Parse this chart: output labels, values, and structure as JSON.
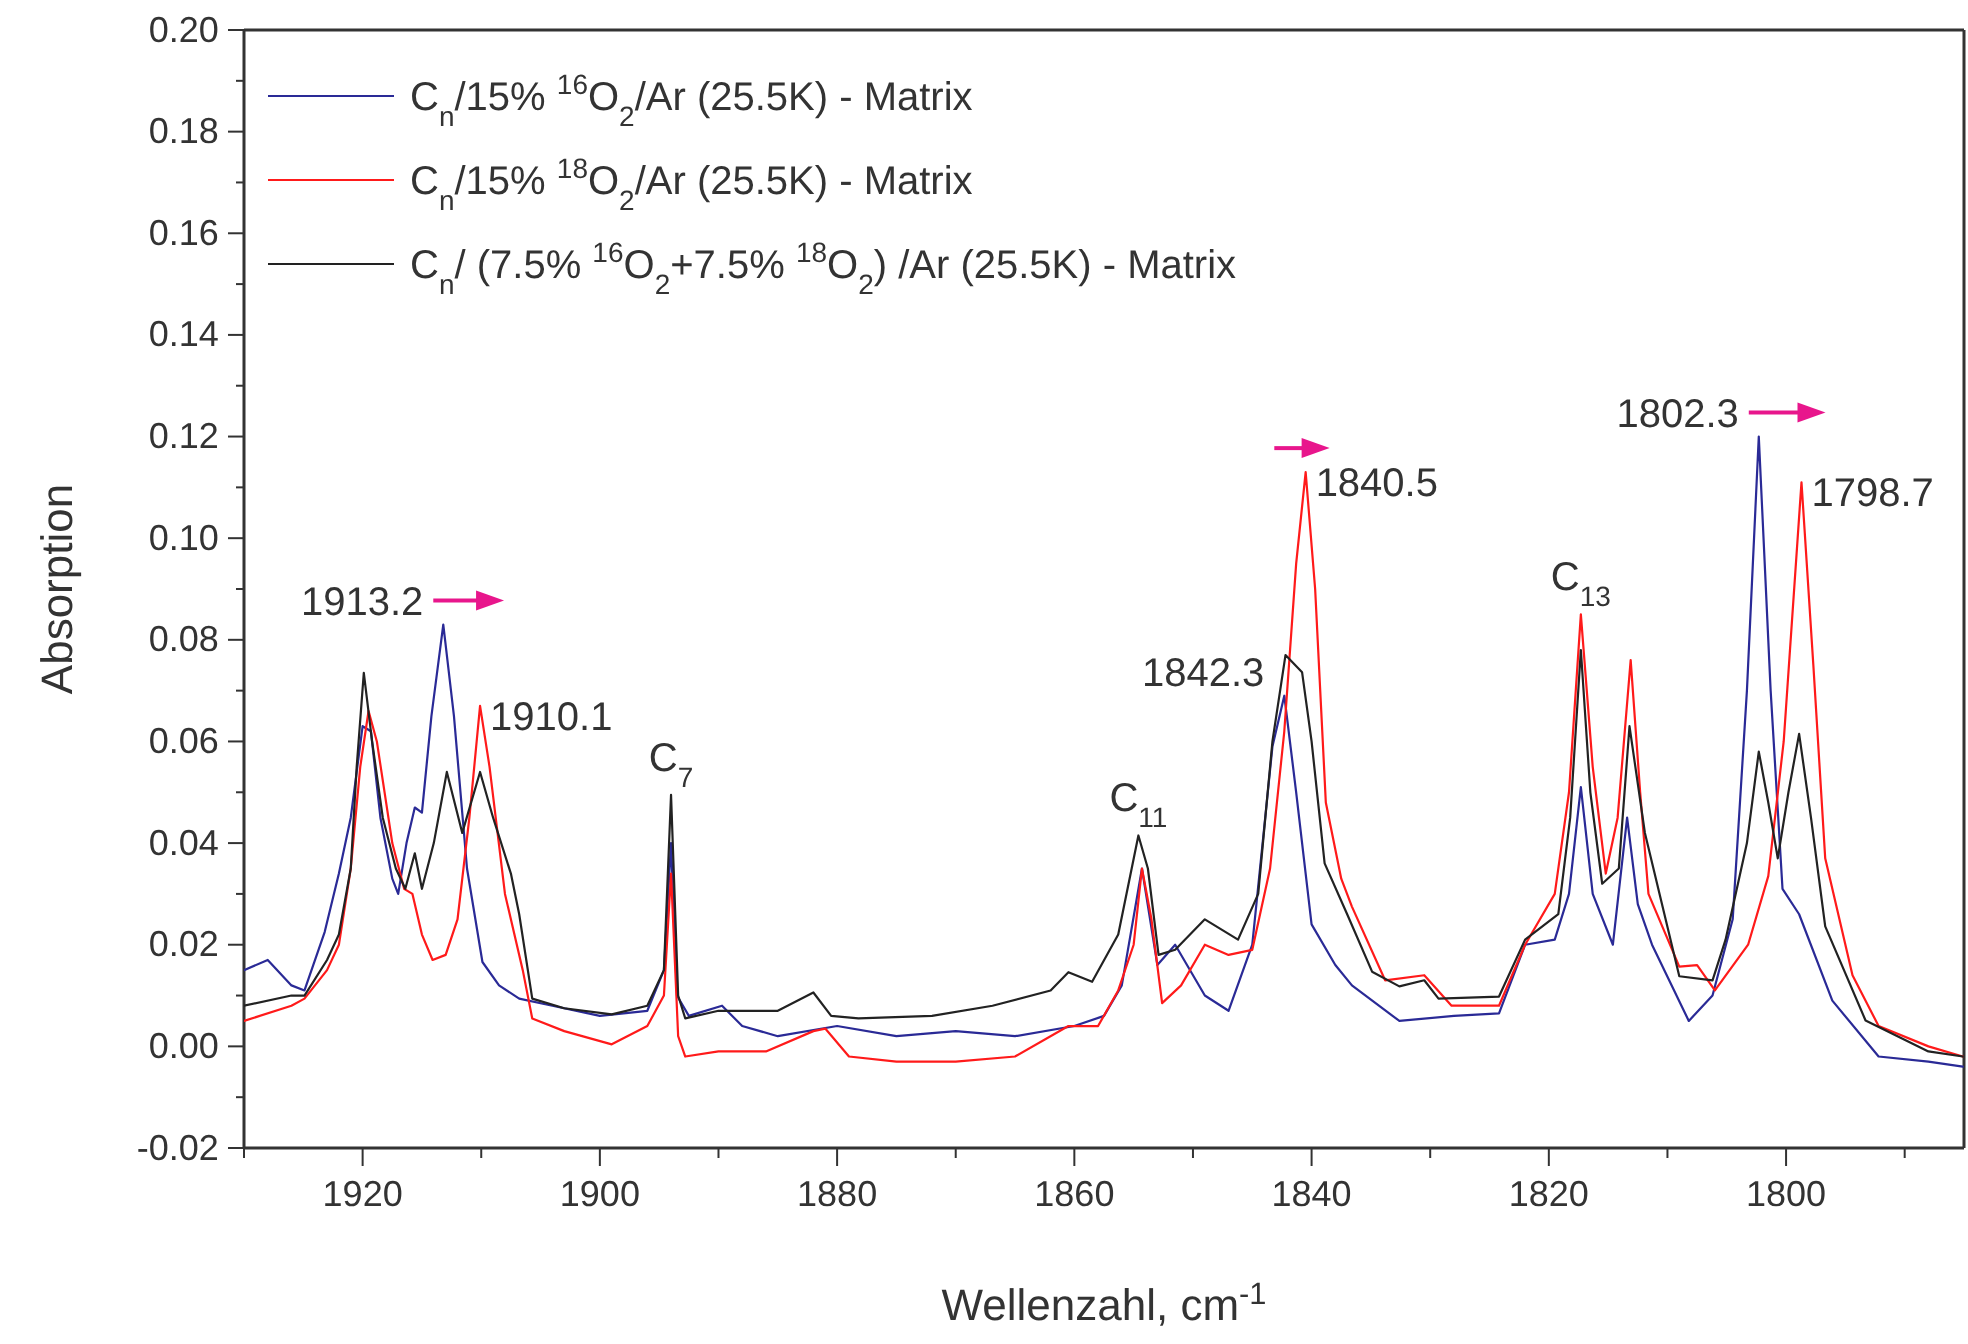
{
  "chart_data": {
    "type": "line",
    "xlabel": "Wellenzahl, cm$^{-1}$",
    "ylabel": "Absorption",
    "xlim": [
      1930,
      1785
    ],
    "ylim": [
      -0.02,
      0.2
    ],
    "xticks": [
      {
        "value": 1930,
        "label": null
      },
      1920,
      {
        "value": 1910,
        "label": null
      },
      1900,
      {
        "value": 1890,
        "label": null
      },
      1880,
      {
        "value": 1870,
        "label": null
      },
      1860,
      {
        "value": 1850,
        "label": null
      },
      1840,
      {
        "value": 1830,
        "label": null
      },
      1820,
      {
        "value": 1810,
        "label": null
      },
      1800,
      {
        "value": 1790,
        "label": null
      }
    ],
    "yticks": [
      {
        "value": -0.02,
        "label": "-0.02"
      },
      {
        "value": -0.01,
        "label": null
      },
      {
        "value": 0,
        "label": "0.00"
      },
      {
        "value": 0.01,
        "label": null
      },
      {
        "value": 0.02,
        "label": "0.02"
      },
      {
        "value": 0.03,
        "label": null
      },
      {
        "value": 0.04,
        "label": "0.04"
      },
      {
        "value": 0.05,
        "label": null
      },
      {
        "value": 0.06,
        "label": "0.06"
      },
      {
        "value": 0.07,
        "label": null
      },
      {
        "value": 0.08,
        "label": "0.08"
      },
      {
        "value": 0.09,
        "label": null
      },
      {
        "value": 0.1,
        "label": "0.10"
      },
      {
        "value": 0.11,
        "label": null
      },
      {
        "value": 0.12,
        "label": "0.12"
      },
      {
        "value": 0.13,
        "label": null
      },
      {
        "value": 0.14,
        "label": "0.14"
      },
      {
        "value": 0.15,
        "label": null
      },
      {
        "value": 0.16,
        "label": "0.16"
      },
      {
        "value": 0.17,
        "label": null
      },
      {
        "value": 0.18,
        "label": "0.18"
      },
      {
        "value": 0.19,
        "label": null
      },
      {
        "value": 0.2,
        "label": "0.20"
      }
    ],
    "grid": false,
    "legend": "top left",
    "marker": "none",
    "line_style": "solid",
    "series": [
      {
        "name": "C$_{n}$/15% $^{16}$O$_{2}$/Ar (25.5K) - Matrix",
        "color": "#2a2a96",
        "x": [
          1930,
          1928,
          1926,
          1924.9,
          1923.2,
          1922,
          1921,
          1920,
          1919.3,
          1918.5,
          1917.5,
          1917,
          1916.3,
          1915.6,
          1915,
          1914.2,
          1913.2,
          1912.3,
          1911.2,
          1909.9,
          1908.5,
          1906.8,
          1904,
          1900,
          1896,
          1894.6,
          1894,
          1893.5,
          1892.5,
          1889.7,
          1888,
          1885,
          1880,
          1875,
          1870,
          1865,
          1860,
          1857.5,
          1856,
          1854.3,
          1853,
          1851.5,
          1849,
          1847,
          1845,
          1843.3,
          1842.3,
          1841.3,
          1840,
          1838,
          1836.6,
          1832.6,
          1828,
          1824.2,
          1822,
          1819.5,
          1818.3,
          1817.3,
          1816.3,
          1814.6,
          1813.4,
          1812.5,
          1811.3,
          1808.2,
          1806.2,
          1804.5,
          1803.3,
          1802.3,
          1801.3,
          1800.3,
          1798.9,
          1796.1,
          1792.2,
          1788,
          1785.1
        ],
        "values": [
          0.015,
          0.017,
          0.012,
          0.011,
          0.0225,
          0.034,
          0.045,
          0.063,
          0.062,
          0.045,
          0.033,
          0.03,
          0.04,
          0.047,
          0.046,
          0.065,
          0.083,
          0.065,
          0.035,
          0.0166,
          0.012,
          0.0094,
          0.008,
          0.006,
          0.007,
          0.015,
          0.04,
          0.01,
          0.006,
          0.008,
          0.004,
          0.002,
          0.004,
          0.002,
          0.003,
          0.002,
          0.004,
          0.006,
          0.012,
          0.035,
          0.016,
          0.02,
          0.01,
          0.007,
          0.02,
          0.059,
          0.069,
          0.05,
          0.024,
          0.016,
          0.012,
          0.005,
          0.006,
          0.0065,
          0.02,
          0.021,
          0.03,
          0.051,
          0.03,
          0.02,
          0.045,
          0.028,
          0.02,
          0.005,
          0.01,
          0.025,
          0.07,
          0.12,
          0.07,
          0.031,
          0.026,
          0.009,
          -0.002,
          -0.003,
          -0.004
        ]
      },
      {
        "name": "C$_{n}$/15% $^{18}$O$_{2}$/Ar (25.5K) - Matrix",
        "color": "#ff1a1a",
        "x": [
          1930,
          1926,
          1924.9,
          1923,
          1922,
          1921,
          1920.2,
          1919.5,
          1918.8,
          1917.5,
          1916.5,
          1915.8,
          1915,
          1914.1,
          1913,
          1912,
          1911,
          1910.1,
          1909.3,
          1908,
          1906.5,
          1905.7,
          1903,
          1899,
          1896,
          1894.6,
          1894,
          1893.4,
          1892.8,
          1890,
          1886,
          1882,
          1881,
          1879,
          1875,
          1870,
          1865,
          1860.5,
          1858,
          1856.3,
          1855,
          1854.3,
          1853.5,
          1852.6,
          1851,
          1849,
          1847,
          1845,
          1843.5,
          1842.3,
          1841.3,
          1840.5,
          1839.7,
          1838.8,
          1837.5,
          1836.6,
          1833.8,
          1830.5,
          1828.2,
          1824.2,
          1822,
          1819.5,
          1818.3,
          1817.3,
          1816.3,
          1815.2,
          1814.2,
          1813.1,
          1812.3,
          1811.6,
          1809,
          1807.5,
          1806,
          1803.2,
          1801.5,
          1800.2,
          1798.7,
          1797.7,
          1796.7,
          1794.4,
          1792.2,
          1788,
          1785.1
        ],
        "values": [
          0.005,
          0.008,
          0.0094,
          0.015,
          0.02,
          0.035,
          0.055,
          0.066,
          0.06,
          0.04,
          0.031,
          0.03,
          0.022,
          0.017,
          0.018,
          0.025,
          0.045,
          0.067,
          0.055,
          0.03,
          0.015,
          0.0055,
          0.003,
          0.0004,
          0.004,
          0.01,
          0.034,
          0.002,
          -0.002,
          -0.001,
          -0.001,
          0.003,
          0.0035,
          -0.002,
          -0.003,
          -0.003,
          -0.002,
          0.004,
          0.004,
          0.011,
          0.02,
          0.035,
          0.025,
          0.0085,
          0.012,
          0.02,
          0.018,
          0.019,
          0.035,
          0.062,
          0.095,
          0.113,
          0.09,
          0.048,
          0.033,
          0.0275,
          0.013,
          0.014,
          0.008,
          0.008,
          0.02,
          0.03,
          0.05,
          0.085,
          0.055,
          0.034,
          0.045,
          0.076,
          0.05,
          0.03,
          0.0157,
          0.016,
          0.011,
          0.02,
          0.0335,
          0.06,
          0.111,
          0.075,
          0.037,
          0.014,
          0.004,
          0,
          -0.002
        ]
      },
      {
        "name": "C$_{n}$/ (7.5% $^{16}$O$_{2}$+7.5% $^{18}$O$_{2}$) /Ar (25.5K) - Matrix",
        "color": "#222222",
        "x": [
          1930,
          1926,
          1924.9,
          1923,
          1922,
          1921,
          1920.5,
          1919.9,
          1919.2,
          1918.3,
          1917.2,
          1916.4,
          1915.6,
          1915,
          1914,
          1912.9,
          1911.6,
          1910.1,
          1909,
          1907.5,
          1906.8,
          1905.7,
          1903,
          1899,
          1896,
          1894.6,
          1894,
          1893.4,
          1892.8,
          1890,
          1885,
          1882,
          1880.5,
          1878.2,
          1872,
          1866.9,
          1862,
          1860.5,
          1858.5,
          1856.3,
          1854.6,
          1853.8,
          1852.9,
          1851.5,
          1849,
          1846.2,
          1844.5,
          1843.3,
          1842.2,
          1840.8,
          1840,
          1838.9,
          1837,
          1834.9,
          1832.6,
          1830.5,
          1829.3,
          1824.2,
          1822,
          1819.2,
          1818.2,
          1817.3,
          1816.5,
          1815.5,
          1814.1,
          1813.2,
          1811.9,
          1809,
          1806.2,
          1805.1,
          1803.3,
          1802.3,
          1801.5,
          1800.7,
          1799.8,
          1798.9,
          1797.9,
          1796.7,
          1793.3,
          1788,
          1785.1
        ],
        "values": [
          0.008,
          0.01,
          0.01,
          0.017,
          0.022,
          0.035,
          0.055,
          0.0735,
          0.06,
          0.045,
          0.035,
          0.031,
          0.038,
          0.031,
          0.04,
          0.054,
          0.042,
          0.054,
          0.045,
          0.034,
          0.026,
          0.0094,
          0.0075,
          0.0063,
          0.008,
          0.015,
          0.0495,
          0.01,
          0.0055,
          0.007,
          0.007,
          0.0106,
          0.006,
          0.0055,
          0.006,
          0.008,
          0.011,
          0.0146,
          0.0127,
          0.022,
          0.0415,
          0.035,
          0.018,
          0.019,
          0.025,
          0.021,
          0.03,
          0.06,
          0.077,
          0.0736,
          0.06,
          0.036,
          0.026,
          0.0147,
          0.0118,
          0.013,
          0.0094,
          0.0098,
          0.021,
          0.026,
          0.045,
          0.078,
          0.05,
          0.032,
          0.035,
          0.063,
          0.042,
          0.0138,
          0.013,
          0.021,
          0.04,
          0.058,
          0.048,
          0.037,
          0.05,
          0.0615,
          0.045,
          0.0236,
          0.0051,
          -0.001,
          -0.002
        ]
      }
    ],
    "annotations": [
      {
        "text": "1913.2",
        "x": 1913.2,
        "y": 0.083
      },
      {
        "text": "1910.1",
        "x": 1910.1,
        "y": 0.067
      },
      {
        "text": "C$_{7}$",
        "x": 1894,
        "y": 0.0495
      },
      {
        "text": "C$_{11}$",
        "x": 1854.6,
        "y": 0.0415
      },
      {
        "text": "1842.3",
        "x": 1842.3,
        "y": 0.069
      },
      {
        "text": "1840.5",
        "x": 1840.5,
        "y": 0.113
      },
      {
        "text": "C$_{13}$",
        "x": 1817.3,
        "y": 0.085
      },
      {
        "text": "1802.3",
        "x": 1802.3,
        "y": 0.12
      },
      {
        "text": "1798.7",
        "x": 1798.7,
        "y": 0.111
      }
    ]
  }
}
